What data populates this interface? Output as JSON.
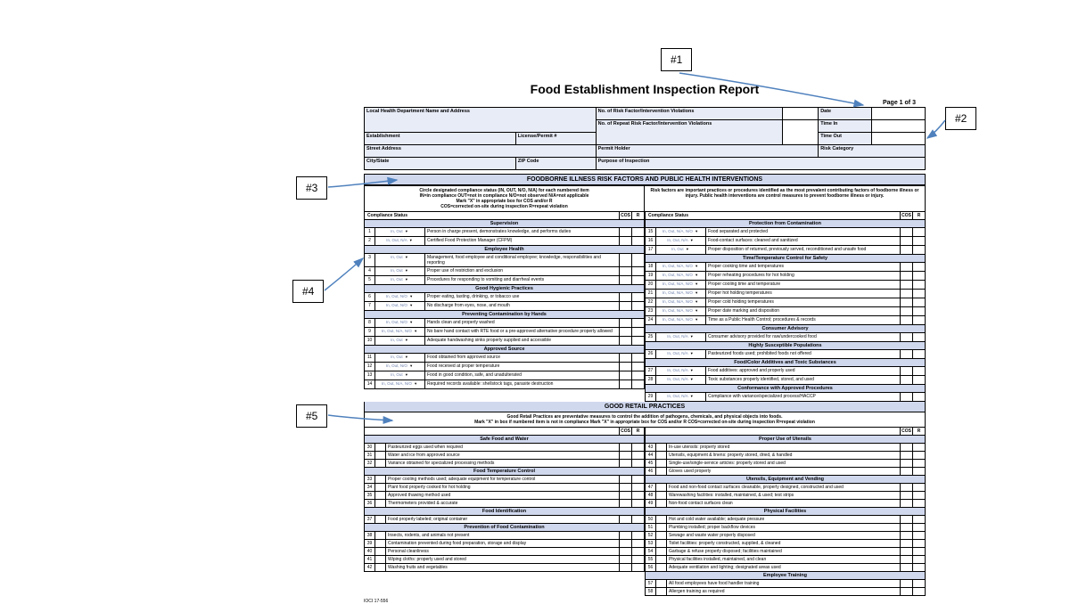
{
  "title": "Food Establishment Inspection Report",
  "page_label": "Page 1 of 3",
  "header": {
    "lhd_label": "Local Health Department Name and Address",
    "est_label": "Establishment",
    "license_label": "License/Permit #",
    "street_label": "Street Address",
    "city_label": "City/State",
    "zip_label": "ZIP Code",
    "risk_violations": "No. of Risk Factor/Intervention Violations",
    "repeat_violations": "No. of Repeat Risk Factor/Intervention Violations",
    "permit_holder": "Permit Holder",
    "risk_category": "Risk Category",
    "purpose": "Purpose of Inspection",
    "date": "Date",
    "time_in": "Time In",
    "time_out": "Time Out"
  },
  "section1": {
    "title": "FOODBORNE ILLNESS RISK FACTORS AND PUBLIC HEALTH INTERVENTIONS",
    "left_inst": "Circle designated compliance status (IN, OUT, N/O, N/A) for each numbered item\nIN=in compliance    OUT=not in compliance    N/O=not observed    N/A=not applicable\nMark \"X\" in appropriate box for COS and/or R\nCOS=corrected on-site during inspection    R=repeat violation",
    "right_inst": "Risk factors are important practices or procedures identified as the most prevalent contributing factors of foodborne illness or injury. Public health interventions are control measures to prevent foodborne illness or injury.",
    "compliance_label": "Compliance Status",
    "cos": "COS",
    "r": "R"
  },
  "left_items": [
    {
      "cat": "Supervision"
    },
    {
      "n": "1",
      "s": "In, Out",
      "d": "Person in charge present, demonstrates knowledge, and performs duties"
    },
    {
      "n": "2",
      "s": "In, Out, N/A",
      "d": "Certified Food Protection Manager (CFPM)"
    },
    {
      "cat": "Employee Health"
    },
    {
      "n": "3",
      "s": "In, Out",
      "d": "Management, food employee and conditional employee; knowledge, responsibilities and reporting"
    },
    {
      "n": "4",
      "s": "In, Out",
      "d": "Proper use of restriction and exclusion"
    },
    {
      "n": "5",
      "s": "In, Out",
      "d": "Procedures for responding to vomiting and diarrheal events"
    },
    {
      "cat": "Good Hygienic Practices"
    },
    {
      "n": "6",
      "s": "In, Out, N/O",
      "d": "Proper eating, tasting, drinking, or tobacco use"
    },
    {
      "n": "7",
      "s": "In, Out, N/O",
      "d": "No discharge from eyes, nose, and mouth"
    },
    {
      "cat": "Preventing Contamination by Hands"
    },
    {
      "n": "8",
      "s": "In, Out, N/O",
      "d": "Hands clean and properly washed"
    },
    {
      "n": "9",
      "s": "In, Out, N/A, N/O",
      "d": "No bare hand contact with RTE food or a pre-approved alternative procedure properly allowed"
    },
    {
      "n": "10",
      "s": "In, Out",
      "d": "Adequate handwashing sinks properly supplied and accessible"
    },
    {
      "cat": "Approved Source"
    },
    {
      "n": "11",
      "s": "In, Out",
      "d": "Food obtained from approved source"
    },
    {
      "n": "12",
      "s": "In, Out, N/O",
      "d": "Food received at proper temperature"
    },
    {
      "n": "13",
      "s": "In, Out",
      "d": "Food in good condition, safe, and unadulterated"
    },
    {
      "n": "14",
      "s": "In, Out, N/A, N/O",
      "d": "Required records available: shellstock tags, parasite destruction"
    }
  ],
  "right_items": [
    {
      "cat": "Protection from Contamination"
    },
    {
      "n": "15",
      "s": "In, Out, N/A, N/O",
      "d": "Food separated and protected"
    },
    {
      "n": "16",
      "s": "In, Out, N/A",
      "d": "Food-contact surfaces: cleaned and sanitized"
    },
    {
      "n": "17",
      "s": "In, Out",
      "d": "Proper disposition of returned, previously served, reconditioned and unsafe food"
    },
    {
      "cat": "Time/Temperature Control for Safety"
    },
    {
      "n": "18",
      "s": "In, Out, N/A, N/O",
      "d": "Proper cooking time and temperatures"
    },
    {
      "n": "19",
      "s": "In, Out, N/A, N/O",
      "d": "Proper reheating procedures for hot holding"
    },
    {
      "n": "20",
      "s": "In, Out, N/A, N/O",
      "d": "Proper cooling time and temperature"
    },
    {
      "n": "21",
      "s": "In, Out, N/A, N/O",
      "d": "Proper hot holding temperatures"
    },
    {
      "n": "22",
      "s": "In, Out, N/A, N/O",
      "d": "Proper cold holding temperatures"
    },
    {
      "n": "23",
      "s": "In, Out, N/A, N/O",
      "d": "Proper date marking and disposition"
    },
    {
      "n": "24",
      "s": "In, Out, N/A, N/O",
      "d": "Time as a Public Health Control; procedures & records"
    },
    {
      "cat": "Consumer Advisory"
    },
    {
      "n": "25",
      "s": "In, Out, N/A",
      "d": "Consumer advisory provided for raw/undercooked food"
    },
    {
      "cat": "Highly Susceptible Populations"
    },
    {
      "n": "26",
      "s": "In, Out, N/A",
      "d": "Pasteurized foods used; prohibited foods not offered"
    },
    {
      "cat": "Food/Color Additives and Toxic Substances"
    },
    {
      "n": "27",
      "s": "In, Out, N/A",
      "d": "Food additives: approved and properly used"
    },
    {
      "n": "28",
      "s": "In, Out, N/A",
      "d": "Toxic substances properly identified, stored, and used"
    },
    {
      "cat": "Conformance with Approved Procedures"
    },
    {
      "n": "29",
      "s": "In, Out, N/A",
      "d": "Compliance with variance/specialized process/HACCP"
    }
  ],
  "grp": {
    "title": "GOOD RETAIL PRACTICES",
    "sub": "Good Retail Practices are preventative measures to control the addition of pathogens, chemicals, and physical objects into foods.\nMark \"X\" in box if numbered item is not in compliance    Mark \"X\" in appropriate box for COS and/or R    COS=corrected on-site during inspection    R=repeat violation",
    "cos": "COS",
    "r": "R"
  },
  "grp_left": [
    {
      "cat": "Safe Food and Water"
    },
    {
      "n": "30",
      "d": "Pasteurized eggs used when required"
    },
    {
      "n": "31",
      "d": "Water and ice from approved source"
    },
    {
      "n": "32",
      "d": "Variance obtained for specialized processing methods"
    },
    {
      "cat": "Food Temperature Control"
    },
    {
      "n": "33",
      "d": "Proper cooling methods used; adequate equipment for temperature control"
    },
    {
      "n": "34",
      "d": "Plant food properly cooked for hot holding"
    },
    {
      "n": "35",
      "d": "Approved thawing method used"
    },
    {
      "n": "36",
      "d": "Thermometers provided & accurate"
    },
    {
      "cat": "Food Identification"
    },
    {
      "n": "37",
      "d": "Food properly labeled; original container"
    },
    {
      "cat": "Prevention of Food Contamination"
    },
    {
      "n": "38",
      "d": "Insects, rodents, and animals not present"
    },
    {
      "n": "39",
      "d": "Contamination prevented during food preparation, storage and display"
    },
    {
      "n": "40",
      "d": "Personal cleanliness"
    },
    {
      "n": "41",
      "d": "Wiping cloths: properly used and stored"
    },
    {
      "n": "42",
      "d": "Washing fruits and vegetables"
    }
  ],
  "grp_right": [
    {
      "cat": "Proper Use of Utensils"
    },
    {
      "n": "43",
      "d": "In-use utensils: properly stored"
    },
    {
      "n": "44",
      "d": "Utensils, equipment & linens: properly stored, dried, & handled"
    },
    {
      "n": "45",
      "d": "Single-use/single-service articles: properly stored and used"
    },
    {
      "n": "46",
      "d": "Gloves used properly"
    },
    {
      "cat": "Utensils, Equipment and Vending"
    },
    {
      "n": "47",
      "d": "Food and non-food contact surfaces cleanable, properly designed, constructed and used"
    },
    {
      "n": "48",
      "d": "Warewashing facilities: installed, maintained, & used; test strips"
    },
    {
      "n": "49",
      "d": "Non-food contact surfaces clean"
    },
    {
      "cat": "Physical Facilities"
    },
    {
      "n": "50",
      "d": "Hot and cold water available; adequate pressure"
    },
    {
      "n": "51",
      "d": "Plumbing installed; proper backflow devices"
    },
    {
      "n": "52",
      "d": "Sewage and waste water properly disposed"
    },
    {
      "n": "53",
      "d": "Toilet facilities: properly constructed, supplied, & cleaned"
    },
    {
      "n": "54",
      "d": "Garbage & refuse properly disposed; facilities maintained"
    },
    {
      "n": "55",
      "d": "Physical facilities installed, maintained, and clean"
    },
    {
      "n": "56",
      "d": "Adequate ventilation and lighting; designated areas used"
    },
    {
      "cat": "Employee Training"
    },
    {
      "n": "57",
      "d": "All food employees have food handler training"
    },
    {
      "n": "58",
      "d": "Allergen training as required"
    }
  ],
  "footer_code": "IOCI 17-556",
  "callouts": {
    "c1": "#1",
    "c2": "#2",
    "c3": "#3",
    "c4": "#4",
    "c5": "#5"
  },
  "arrow_color": "#4f81bd"
}
